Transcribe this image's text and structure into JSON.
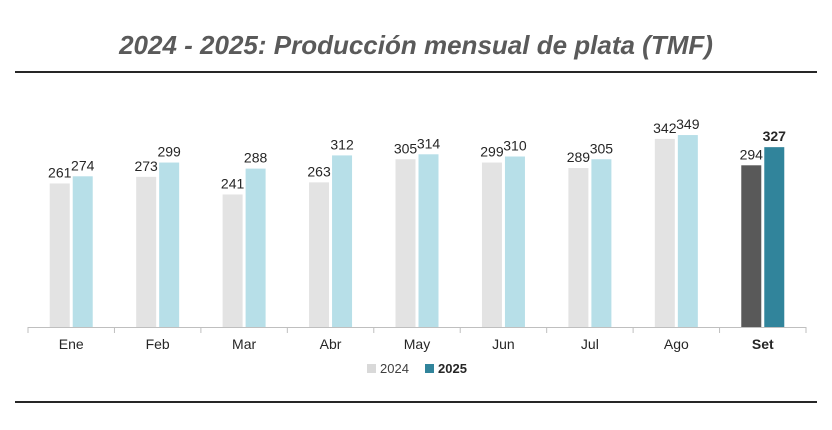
{
  "title": "2024 - 2025: Producción mensual de plata  (TMF)",
  "chart_data": {
    "type": "bar",
    "title": "2024 - 2025: Producción mensual de plata  (TMF)",
    "xlabel": "",
    "ylabel": "",
    "ylim": [
      0,
      360
    ],
    "grid": false,
    "legend_position": "bottom-center",
    "categories": [
      "Ene",
      "Feb",
      "Mar",
      "Abr",
      "May",
      "Jun",
      "Jul",
      "Ago",
      "Set"
    ],
    "highlight_category": "Set",
    "series": [
      {
        "name": "2024",
        "values": [
          261,
          273,
          241,
          263,
          305,
          299,
          289,
          342,
          294
        ],
        "color": "#e3e3e3",
        "highlight_color": "#595959"
      },
      {
        "name": "2025",
        "values": [
          274,
          299,
          288,
          312,
          314,
          310,
          305,
          349,
          327
        ],
        "color": "#b7dfe8",
        "highlight_color": "#31849b"
      }
    ]
  },
  "legend": {
    "items": [
      {
        "label": "2024",
        "color": "#d9d9d9",
        "bold": false
      },
      {
        "label": "2025",
        "color": "#31849b",
        "bold": true
      }
    ]
  }
}
